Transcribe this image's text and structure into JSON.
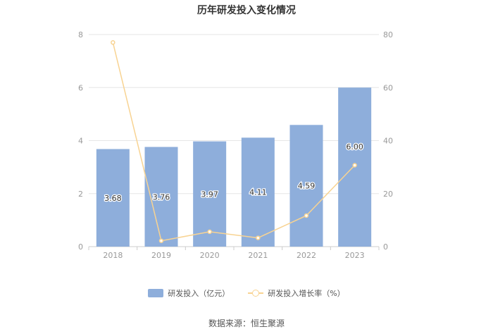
{
  "title": "历年研发投入变化情况",
  "source": "数据来源：恒生聚源",
  "colors": {
    "bar": "#8eaedb",
    "line": "#f8d392",
    "grid": "#e6e6e6",
    "axis_text": "#999999",
    "label_text": "#333333"
  },
  "chart_data": {
    "type": "bar",
    "categories": [
      "2018",
      "2019",
      "2020",
      "2021",
      "2022",
      "2023"
    ],
    "series": [
      {
        "name": "研发投入（亿元）",
        "type": "bar",
        "axis": "left",
        "values": [
          3.68,
          3.76,
          3.97,
          4.11,
          4.59,
          6.0
        ],
        "labels": [
          "3.68",
          "3.76",
          "3.97",
          "4.11",
          "4.59",
          "6.00"
        ]
      },
      {
        "name": "研发投入增长率（%）",
        "type": "line",
        "axis": "right",
        "values": [
          77,
          2.2,
          5.6,
          3.3,
          11.7,
          30.7
        ]
      }
    ],
    "y_left": {
      "min": 0,
      "max": 8,
      "ticks": [
        "0",
        "2",
        "4",
        "6",
        "8"
      ]
    },
    "y_right": {
      "min": 0,
      "max": 80,
      "ticks": [
        "0",
        "20",
        "40",
        "60",
        "80"
      ]
    },
    "grid": true,
    "legend": "bottom"
  }
}
